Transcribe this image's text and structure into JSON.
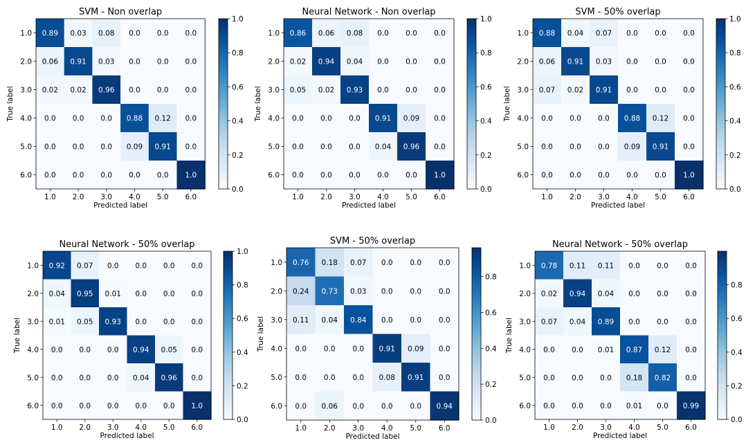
{
  "chart_data": [
    {
      "type": "heatmap",
      "title": "SVM - Non overlap",
      "xlabel": "Predicted label",
      "ylabel": "True label",
      "x_tick_labels": [
        "1.0",
        "2.0",
        "3.0",
        "4.0",
        "5.0",
        "6.0"
      ],
      "y_tick_labels": [
        "1.0",
        "2.0",
        "3.0",
        "4.0",
        "5.0",
        "6.0"
      ],
      "cell_labels": [
        [
          "0.89",
          "0.03",
          "0.08",
          "0.0",
          "0.0",
          "0.0"
        ],
        [
          "0.06",
          "0.91",
          "0.03",
          "0.0",
          "0.0",
          "0.0"
        ],
        [
          "0.02",
          "0.02",
          "0.96",
          "0.0",
          "0.0",
          "0.0"
        ],
        [
          "0.0",
          "0.0",
          "0.0",
          "0.88",
          "0.12",
          "0.0"
        ],
        [
          "0.0",
          "0.0",
          "0.0",
          "0.09",
          "0.91",
          "0.0"
        ],
        [
          "0.0",
          "0.0",
          "0.0",
          "0.0",
          "0.0",
          "1.0"
        ]
      ],
      "colorbar": {
        "min": 0.0,
        "max": 1.0,
        "ticks": [
          "0.0",
          "0.2",
          "0.4",
          "0.6",
          "0.8",
          "1.0"
        ]
      }
    },
    {
      "type": "heatmap",
      "title": "Neural Network - Non overlap",
      "xlabel": "Predicted label",
      "ylabel": "True label",
      "x_tick_labels": [
        "1.0",
        "2.0",
        "3.0",
        "4.0",
        "5.0",
        "6.0"
      ],
      "y_tick_labels": [
        "1.0",
        "2.0",
        "3.0",
        "4.0",
        "5.0",
        "6.0"
      ],
      "cell_labels": [
        [
          "0.86",
          "0.06",
          "0.08",
          "0.0",
          "0.0",
          "0.0"
        ],
        [
          "0.02",
          "0.94",
          "0.04",
          "0.0",
          "0.0",
          "0.0"
        ],
        [
          "0.05",
          "0.02",
          "0.93",
          "0.0",
          "0.0",
          "0.0"
        ],
        [
          "0.0",
          "0.0",
          "0.0",
          "0.91",
          "0.09",
          "0.0"
        ],
        [
          "0.0",
          "0.0",
          "0.0",
          "0.04",
          "0.96",
          "0.0"
        ],
        [
          "0.0",
          "0.0",
          "0.0",
          "0.0",
          "0.0",
          "1.0"
        ]
      ],
      "colorbar": {
        "min": 0.0,
        "max": 1.0,
        "ticks": [
          "0.0",
          "0.2",
          "0.4",
          "0.6",
          "0.8",
          "1.0"
        ]
      }
    },
    {
      "type": "heatmap",
      "title": "SVM - 50% overlap",
      "xlabel": "Predicted label",
      "ylabel": "True label",
      "x_tick_labels": [
        "1.0",
        "2.0",
        "3.0",
        "4.0",
        "5.0",
        "6.0"
      ],
      "y_tick_labels": [
        "1.0",
        "2.0",
        "3.0",
        "4.0",
        "5.0",
        "6.0"
      ],
      "cell_labels": [
        [
          "0.88",
          "0.04",
          "0.07",
          "0.0",
          "0.0",
          "0.0"
        ],
        [
          "0.06",
          "0.91",
          "0.03",
          "0.0",
          "0.0",
          "0.0"
        ],
        [
          "0.07",
          "0.02",
          "0.91",
          "0.0",
          "0.0",
          "0.0"
        ],
        [
          "0.0",
          "0.0",
          "0.0",
          "0.88",
          "0.12",
          "0.0"
        ],
        [
          "0.0",
          "0.0",
          "0.0",
          "0.09",
          "0.91",
          "0.0"
        ],
        [
          "0.0",
          "0.0",
          "0.0",
          "0.0",
          "0.0",
          "1.0"
        ]
      ],
      "colorbar": {
        "min": 0.0,
        "max": 1.0,
        "ticks": [
          "0.0",
          "0.2",
          "0.4",
          "0.6",
          "0.8",
          "1.0"
        ]
      }
    },
    {
      "type": "heatmap",
      "title": "Neural Network - 50% overlap",
      "xlabel": "Predicted label",
      "ylabel": "True label",
      "x_tick_labels": [
        "1.0",
        "2.0",
        "3.0",
        "4.0",
        "5.0",
        "6.0"
      ],
      "y_tick_labels": [
        "1.0",
        "2.0",
        "3.0",
        "4.0",
        "5.0",
        "6.0"
      ],
      "cell_labels": [
        [
          "0.92",
          "0.07",
          "0.0",
          "0.0",
          "0.0",
          "0.0"
        ],
        [
          "0.04",
          "0.95",
          "0.01",
          "0.0",
          "0.0",
          "0.0"
        ],
        [
          "0.01",
          "0.05",
          "0.93",
          "0.0",
          "0.0",
          "0.0"
        ],
        [
          "0.0",
          "0.0",
          "0.0",
          "0.94",
          "0.05",
          "0.0"
        ],
        [
          "0.0",
          "0.0",
          "0.0",
          "0.04",
          "0.96",
          "0.0"
        ],
        [
          "0.0",
          "0.0",
          "0.0",
          "0.0",
          "0.0",
          "1.0"
        ]
      ],
      "colorbar": {
        "min": 0.0,
        "max": 1.0,
        "ticks": [
          "0.0",
          "0.2",
          "0.4",
          "0.6",
          "0.8",
          "1.0"
        ]
      }
    },
    {
      "type": "heatmap",
      "title": "SVM - 50% overlap",
      "xlabel": "Predicted label",
      "ylabel": "True label",
      "x_tick_labels": [
        "1.0",
        "2.0",
        "3.0",
        "4.0",
        "5.0",
        "6.0"
      ],
      "y_tick_labels": [
        "1.0",
        "2.0",
        "3.0",
        "4.0",
        "5.0",
        "6.0"
      ],
      "cell_labels": [
        [
          "0.76",
          "0.18",
          "0.07",
          "0.0",
          "0.0",
          "0.0"
        ],
        [
          "0.24",
          "0.73",
          "0.03",
          "0.0",
          "0.0",
          "0.0"
        ],
        [
          "0.11",
          "0.04",
          "0.84",
          "0.0",
          "0.0",
          "0.0"
        ],
        [
          "0.0",
          "0.0",
          "0.0",
          "0.91",
          "0.09",
          "0.0"
        ],
        [
          "0.0",
          "0.0",
          "0.0",
          "0.08",
          "0.91",
          "0.0"
        ],
        [
          "0.0",
          "0.06",
          "0.0",
          "0.0",
          "0.0",
          "0.94"
        ]
      ],
      "colorbar": {
        "min": 0.0,
        "max": 0.96,
        "ticks": [
          "0.0",
          "0.2",
          "0.4",
          "0.6",
          "0.8"
        ]
      }
    },
    {
      "type": "heatmap",
      "title": "Neural Network - 50% overlap",
      "xlabel": "Predicted label",
      "ylabel": "True label",
      "x_tick_labels": [
        "1.0",
        "2.0",
        "3.0",
        "4.0",
        "5.0",
        "6.0"
      ],
      "y_tick_labels": [
        "1.0",
        "2.0",
        "3.0",
        "4.0",
        "5.0",
        "6.0"
      ],
      "cell_labels": [
        [
          "0.78",
          "0.11",
          "0.11",
          "0.0",
          "0.0",
          "0.0"
        ],
        [
          "0.02",
          "0.94",
          "0.04",
          "0.0",
          "0.0",
          "0.0"
        ],
        [
          "0.07",
          "0.04",
          "0.89",
          "0.0",
          "0.0",
          "0.0"
        ],
        [
          "0.0",
          "0.0",
          "0.01",
          "0.87",
          "0.12",
          "0.0"
        ],
        [
          "0.0",
          "0.0",
          "0.0",
          "0.18",
          "0.82",
          "0.0"
        ],
        [
          "0.0",
          "0.0",
          "0.0",
          "0.01",
          "0.0",
          "0.99"
        ]
      ],
      "colorbar": {
        "min": 0.0,
        "max": 1.0,
        "ticks": [
          "0.0",
          "0.2",
          "0.4",
          "0.6",
          "0.8"
        ]
      }
    }
  ]
}
